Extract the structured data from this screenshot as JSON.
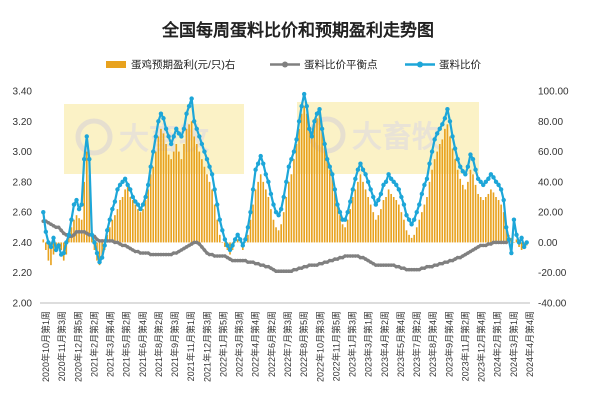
{
  "chart_data": {
    "type": "bar+line",
    "title": "全国每周蛋料比价和预期盈利走势图",
    "legend": {
      "placement": "top",
      "items": [
        "蛋鸡预期盈利(元/只)右",
        "蛋料比价平衡点",
        "蛋料比价"
      ]
    },
    "watermark": "大畜牧",
    "colors": {
      "profit": "#E8A21E",
      "balance": "#808080",
      "ratio": "#1DA6D8",
      "watermark_box": "#FBF2C6"
    },
    "y_left": {
      "min": 2.0,
      "max": 3.4,
      "ticks": [
        "2.00",
        "2.20",
        "2.40",
        "2.60",
        "2.80",
        "3.00",
        "3.20",
        "3.40"
      ]
    },
    "y_right": {
      "min": -40,
      "max": 100,
      "ticks": [
        "-40.00",
        "-20.00",
        "0.00",
        "20.00",
        "40.00",
        "60.00",
        "80.00",
        "100.00"
      ]
    },
    "x_ticks": [
      "2020年10月第1周",
      "2020年11月第3周",
      "2020年12月第5周",
      "2021年2月第2周",
      "2021年3月第4周",
      "2021年5月第2周",
      "2021年6月第4周",
      "2021年8月第2周",
      "2021年9月第3周",
      "2021年11月第1周",
      "2021年12月第3周",
      "2022年1月第5周",
      "2022年3月第3周",
      "2022年4月第4周",
      "2022年6月第2周",
      "2022年7月第3周",
      "2022年8月第5周",
      "2022年10月第3周",
      "2022年11月第5周",
      "2023年1月第3周",
      "2023年3月第1周",
      "2023年4月第2周",
      "2023年5月第4周",
      "2023年7月第2周",
      "2023年8月第4周",
      "2023年9月第4周",
      "2023年11月第2周",
      "2023年12月第4周",
      "2024年2月第1周",
      "2024年3月第1周",
      "2024年4月第4周"
    ],
    "series": [
      {
        "name": "蛋鸡预期盈利(元/只)右",
        "axis": "right",
        "type": "bar",
        "values": [
          2,
          -5,
          -12,
          -15,
          -8,
          -3,
          -2,
          -5,
          -12,
          -8,
          5,
          10,
          15,
          18,
          16,
          15,
          40,
          60,
          45,
          5,
          -5,
          -12,
          -15,
          -10,
          -5,
          5,
          10,
          15,
          18,
          22,
          28,
          30,
          35,
          37,
          30,
          28,
          25,
          22,
          20,
          22,
          28,
          35,
          45,
          50,
          60,
          70,
          75,
          72,
          65,
          58,
          55,
          60,
          65,
          60,
          55,
          65,
          75,
          78,
          80,
          70,
          65,
          60,
          55,
          50,
          45,
          40,
          35,
          25,
          15,
          5,
          0,
          -3,
          -5,
          -8,
          -5,
          0,
          2,
          0,
          -5,
          0,
          5,
          15,
          25,
          35,
          40,
          45,
          40,
          35,
          30,
          22,
          15,
          10,
          8,
          12,
          20,
          30,
          40,
          45,
          55,
          65,
          75,
          85,
          90,
          85,
          75,
          70,
          78,
          82,
          85,
          75,
          65,
          55,
          48,
          45,
          35,
          25,
          18,
          12,
          10,
          15,
          22,
          30,
          35,
          40,
          45,
          40,
          35,
          30,
          25,
          20,
          15,
          18,
          22,
          28,
          30,
          35,
          32,
          30,
          28,
          25,
          20,
          15,
          8,
          5,
          3,
          5,
          10,
          15,
          20,
          25,
          30,
          40,
          48,
          55,
          60,
          65,
          68,
          75,
          78,
          70,
          62,
          55,
          48,
          42,
          38,
          35,
          40,
          48,
          45,
          38,
          32,
          30,
          28,
          30,
          32,
          35,
          33,
          30,
          28,
          25,
          20,
          10,
          5,
          3,
          0,
          2,
          -3,
          -5,
          -3,
          -2
        ]
      },
      {
        "name": "蛋料比价平衡点",
        "axis": "left",
        "type": "line",
        "values": [
          2.54,
          2.54,
          2.53,
          2.52,
          2.51,
          2.5,
          2.5,
          2.48,
          2.46,
          2.45,
          2.44,
          2.44,
          2.45,
          2.47,
          2.47,
          2.47,
          2.47,
          2.46,
          2.45,
          2.45,
          2.44,
          2.42,
          2.41,
          2.41,
          2.41,
          2.41,
          2.41,
          2.41,
          2.4,
          2.4,
          2.39,
          2.38,
          2.38,
          2.37,
          2.36,
          2.35,
          2.34,
          2.34,
          2.33,
          2.33,
          2.33,
          2.33,
          2.32,
          2.32,
          2.32,
          2.32,
          2.32,
          2.32,
          2.32,
          2.32,
          2.32,
          2.33,
          2.33,
          2.34,
          2.35,
          2.36,
          2.37,
          2.38,
          2.39,
          2.4,
          2.4,
          2.39,
          2.37,
          2.35,
          2.33,
          2.32,
          2.32,
          2.31,
          2.31,
          2.31,
          2.31,
          2.31,
          2.3,
          2.29,
          2.28,
          2.28,
          2.28,
          2.28,
          2.28,
          2.28,
          2.27,
          2.27,
          2.27,
          2.26,
          2.26,
          2.25,
          2.25,
          2.24,
          2.24,
          2.23,
          2.22,
          2.21,
          2.21,
          2.21,
          2.21,
          2.21,
          2.21,
          2.21,
          2.22,
          2.22,
          2.23,
          2.23,
          2.24,
          2.24,
          2.25,
          2.25,
          2.25,
          2.25,
          2.26,
          2.26,
          2.27,
          2.27,
          2.28,
          2.28,
          2.29,
          2.29,
          2.3,
          2.3,
          2.31,
          2.31,
          2.31,
          2.31,
          2.31,
          2.31,
          2.3,
          2.3,
          2.29,
          2.28,
          2.27,
          2.26,
          2.25,
          2.25,
          2.25,
          2.25,
          2.25,
          2.25,
          2.25,
          2.25,
          2.24,
          2.24,
          2.23,
          2.23,
          2.22,
          2.22,
          2.22,
          2.22,
          2.22,
          2.22,
          2.23,
          2.23,
          2.24,
          2.24,
          2.24,
          2.25,
          2.25,
          2.26,
          2.26,
          2.27,
          2.27,
          2.28,
          2.28,
          2.29,
          2.3,
          2.3,
          2.31,
          2.32,
          2.33,
          2.34,
          2.35,
          2.36,
          2.37,
          2.38,
          2.38,
          2.38,
          2.39,
          2.39,
          2.4,
          2.4,
          2.4,
          2.4,
          2.4,
          2.4
        ]
      },
      {
        "name": "蛋料比价",
        "axis": "left",
        "type": "line",
        "values": [
          2.6,
          2.47,
          2.4,
          2.37,
          2.43,
          2.35,
          2.38,
          2.32,
          2.33,
          2.4,
          2.45,
          2.55,
          2.65,
          2.68,
          2.62,
          2.65,
          2.95,
          3.1,
          2.95,
          2.45,
          2.4,
          2.33,
          2.27,
          2.3,
          2.38,
          2.48,
          2.55,
          2.62,
          2.67,
          2.75,
          2.78,
          2.8,
          2.82,
          2.78,
          2.75,
          2.7,
          2.67,
          2.65,
          2.62,
          2.65,
          2.7,
          2.78,
          2.9,
          3.0,
          3.1,
          3.2,
          3.25,
          3.22,
          3.15,
          3.1,
          3.05,
          3.1,
          3.15,
          3.12,
          3.1,
          3.15,
          3.25,
          3.3,
          3.35,
          3.2,
          3.15,
          3.1,
          3.05,
          3.0,
          2.95,
          2.9,
          2.85,
          2.75,
          2.65,
          2.55,
          2.48,
          2.42,
          2.38,
          2.35,
          2.38,
          2.42,
          2.45,
          2.42,
          2.38,
          2.42,
          2.5,
          2.6,
          2.75,
          2.88,
          2.92,
          2.97,
          2.92,
          2.85,
          2.8,
          2.72,
          2.65,
          2.6,
          2.58,
          2.62,
          2.7,
          2.8,
          2.9,
          2.95,
          3.0,
          3.08,
          3.2,
          3.3,
          3.38,
          3.3,
          3.15,
          3.1,
          3.2,
          3.25,
          3.28,
          3.15,
          3.05,
          2.95,
          2.9,
          2.85,
          2.75,
          2.65,
          2.6,
          2.55,
          2.55,
          2.6,
          2.67,
          2.75,
          2.82,
          2.88,
          2.92,
          2.88,
          2.85,
          2.8,
          2.75,
          2.7,
          2.65,
          2.68,
          2.72,
          2.78,
          2.8,
          2.85,
          2.82,
          2.8,
          2.78,
          2.75,
          2.7,
          2.65,
          2.58,
          2.55,
          2.52,
          2.55,
          2.6,
          2.65,
          2.72,
          2.78,
          2.82,
          2.92,
          3.0,
          3.08,
          3.12,
          3.15,
          3.18,
          3.22,
          3.28,
          3.2,
          3.1,
          3.02,
          2.95,
          2.9,
          2.87,
          2.85,
          2.9,
          2.98,
          2.95,
          2.88,
          2.82,
          2.8,
          2.78,
          2.8,
          2.82,
          2.85,
          2.83,
          2.8,
          2.78,
          2.75,
          2.68,
          2.5,
          2.42,
          2.33,
          2.55,
          2.45,
          2.4,
          2.43,
          2.37,
          2.4
        ]
      }
    ]
  }
}
